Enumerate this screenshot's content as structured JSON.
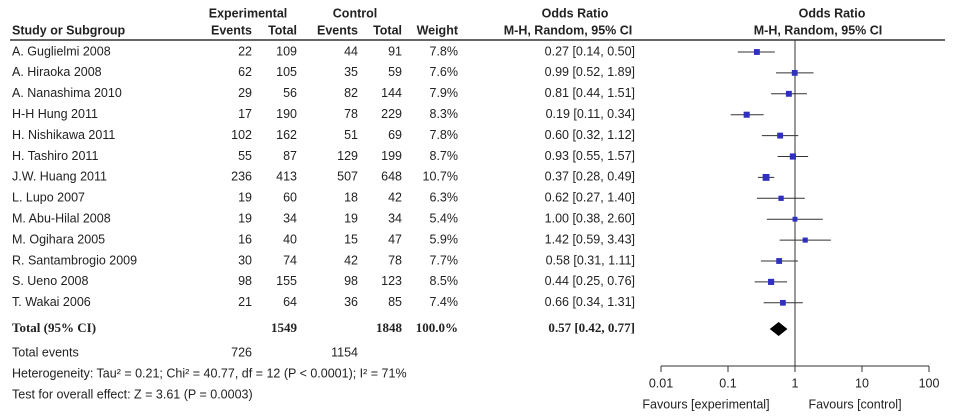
{
  "chart_data": {
    "type": "forest",
    "headers": {
      "group_experimental": "Experimental",
      "group_control": "Control",
      "study": "Study or Subgroup",
      "exp_events": "Events",
      "exp_total": "Total",
      "ctl_events": "Events",
      "ctl_total": "Total",
      "weight": "Weight",
      "or_title": "Odds Ratio",
      "or_method": "M-H, Random, 95% CI",
      "plot_title": "Odds Ratio",
      "plot_method": "M-H, Random, 95% CI"
    },
    "studies": [
      {
        "name": "A. Guglielmi 2008",
        "exp_events": 22,
        "exp_total": 109,
        "ctl_events": 44,
        "ctl_total": 91,
        "weight": 7.8,
        "weight_label": "7.8%",
        "estimate": 0.27,
        "ci": [
          0.14,
          0.5
        ],
        "value_label": "0.27 [0.14, 0.50]"
      },
      {
        "name": "A. Hiraoka 2008",
        "exp_events": 62,
        "exp_total": 105,
        "ctl_events": 35,
        "ctl_total": 59,
        "weight": 7.6,
        "weight_label": "7.6%",
        "estimate": 0.99,
        "ci": [
          0.52,
          1.89
        ],
        "value_label": "0.99 [0.52, 1.89]"
      },
      {
        "name": "A. Nanashima 2010",
        "exp_events": 29,
        "exp_total": 56,
        "ctl_events": 82,
        "ctl_total": 144,
        "weight": 7.9,
        "weight_label": "7.9%",
        "estimate": 0.81,
        "ci": [
          0.44,
          1.51
        ],
        "value_label": "0.81 [0.44, 1.51]"
      },
      {
        "name": "H-H Hung 2011",
        "exp_events": 17,
        "exp_total": 190,
        "ctl_events": 78,
        "ctl_total": 229,
        "weight": 8.3,
        "weight_label": "8.3%",
        "estimate": 0.19,
        "ci": [
          0.11,
          0.34
        ],
        "value_label": "0.19 [0.11, 0.34]"
      },
      {
        "name": "H. Nishikawa 2011",
        "exp_events": 102,
        "exp_total": 162,
        "ctl_events": 51,
        "ctl_total": 69,
        "weight": 7.8,
        "weight_label": "7.8%",
        "estimate": 0.6,
        "ci": [
          0.32,
          1.12
        ],
        "value_label": "0.60 [0.32, 1.12]"
      },
      {
        "name": "H. Tashiro 2011",
        "exp_events": 55,
        "exp_total": 87,
        "ctl_events": 129,
        "ctl_total": 199,
        "weight": 8.7,
        "weight_label": "8.7%",
        "estimate": 0.93,
        "ci": [
          0.55,
          1.57
        ],
        "value_label": "0.93 [0.55, 1.57]"
      },
      {
        "name": "J.W. Huang 2011",
        "exp_events": 236,
        "exp_total": 413,
        "ctl_events": 507,
        "ctl_total": 648,
        "weight": 10.7,
        "weight_label": "10.7%",
        "estimate": 0.37,
        "ci": [
          0.28,
          0.49
        ],
        "value_label": "0.37 [0.28, 0.49]"
      },
      {
        "name": "L. Lupo 2007",
        "exp_events": 19,
        "exp_total": 60,
        "ctl_events": 18,
        "ctl_total": 42,
        "weight": 6.3,
        "weight_label": "6.3%",
        "estimate": 0.62,
        "ci": [
          0.27,
          1.4
        ],
        "value_label": "0.62 [0.27, 1.40]"
      },
      {
        "name": "M. Abu-Hilal 2008",
        "exp_events": 19,
        "exp_total": 34,
        "ctl_events": 19,
        "ctl_total": 34,
        "weight": 5.4,
        "weight_label": "5.4%",
        "estimate": 1.0,
        "ci": [
          0.38,
          2.6
        ],
        "value_label": "1.00 [0.38, 2.60]"
      },
      {
        "name": "M. Ogihara 2005",
        "exp_events": 16,
        "exp_total": 40,
        "ctl_events": 15,
        "ctl_total": 47,
        "weight": 5.9,
        "weight_label": "5.9%",
        "estimate": 1.42,
        "ci": [
          0.59,
          3.43
        ],
        "value_label": "1.42 [0.59, 3.43]"
      },
      {
        "name": "R. Santambrogio 2009",
        "exp_events": 30,
        "exp_total": 74,
        "ctl_events": 42,
        "ctl_total": 78,
        "weight": 7.7,
        "weight_label": "7.7%",
        "estimate": 0.58,
        "ci": [
          0.31,
          1.11
        ],
        "value_label": "0.58 [0.31, 1.11]"
      },
      {
        "name": "S. Ueno 2008",
        "exp_events": 98,
        "exp_total": 155,
        "ctl_events": 98,
        "ctl_total": 123,
        "weight": 8.5,
        "weight_label": "8.5%",
        "estimate": 0.44,
        "ci": [
          0.25,
          0.76
        ],
        "value_label": "0.44 [0.25, 0.76]"
      },
      {
        "name": "T. Wakai 2006",
        "exp_events": 21,
        "exp_total": 64,
        "ctl_events": 36,
        "ctl_total": 85,
        "weight": 7.4,
        "weight_label": "7.4%",
        "estimate": 0.66,
        "ci": [
          0.34,
          1.31
        ],
        "value_label": "0.66 [0.34, 1.31]"
      }
    ],
    "total": {
      "name": "Total (95% CI)",
      "exp_total": 1549,
      "ctl_total": 1848,
      "weight_label": "100.0%",
      "estimate": 0.57,
      "ci": [
        0.42,
        0.77
      ],
      "value_label": "0.57 [0.42, 0.77]",
      "events_name": "Total events",
      "exp_events": 726,
      "ctl_events": 1154
    },
    "heterogeneity": "Heterogeneity: Tau² = 0.21; Chi² = 40.77, df = 12 (P < 0.0001); I² = 71%",
    "overall_effect": "Test for overall effect: Z = 3.61 (P = 0.0003)",
    "color": "#3030c0",
    "log_x": true,
    "xlim": [
      0.01,
      100
    ],
    "xticks": [
      0.01,
      0.1,
      1,
      10,
      100
    ],
    "favours_left": "Favours [experimental]",
    "favours_right": "Favours [control]"
  }
}
